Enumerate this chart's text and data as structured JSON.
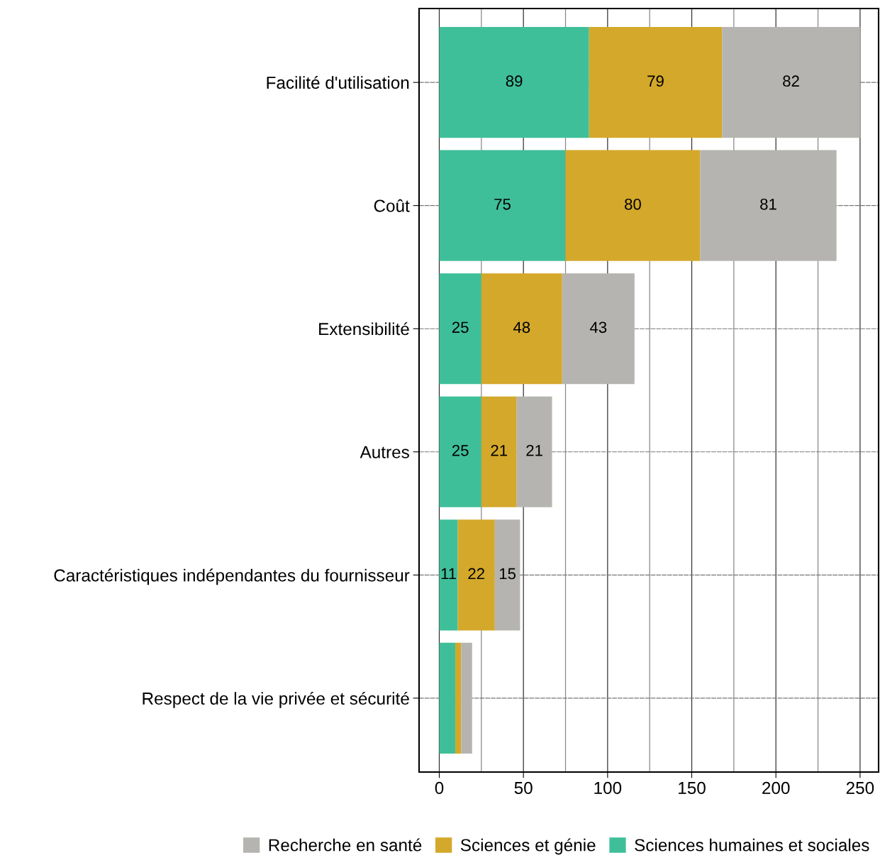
{
  "chart_data": {
    "type": "bar",
    "orientation": "horizontal",
    "stacked": true,
    "categories": [
      "Facilité d'utilisation",
      "Coût",
      "Extensibilité",
      "Autres",
      "Caractéristiques indépendantes du fournisseur",
      "Respect de la vie privée et sécurité"
    ],
    "series": [
      {
        "name": "Sciences humaines et sociales",
        "color": "#3fbf99",
        "values": [
          89,
          75,
          25,
          25,
          11,
          9.5
        ],
        "value_labels": [
          "89",
          "75",
          "25",
          "25",
          "11",
          null
        ]
      },
      {
        "name": "Sciences et génie",
        "color": "#d4a82a",
        "values": [
          79,
          80,
          48,
          21,
          22,
          3.5
        ],
        "value_labels": [
          "79",
          "80",
          "48",
          "21",
          "22",
          null
        ]
      },
      {
        "name": "Recherche en santé",
        "color": "#b5b4b0",
        "values": [
          82,
          81,
          43,
          21,
          15,
          6.5
        ],
        "value_labels": [
          "82",
          "81",
          "43",
          "21",
          "15",
          null
        ]
      }
    ],
    "xlim": [
      -12,
      261
    ],
    "xticks": [
      0,
      {
        "value": 25,
        "label": null
      },
      50,
      {
        "value": 75,
        "label": null
      },
      100,
      {
        "value": 125,
        "label": null
      },
      150,
      {
        "value": 175,
        "label": null
      },
      200,
      {
        "value": 225,
        "label": null
      },
      250
    ],
    "grid": true,
    "legend": "bottom"
  }
}
